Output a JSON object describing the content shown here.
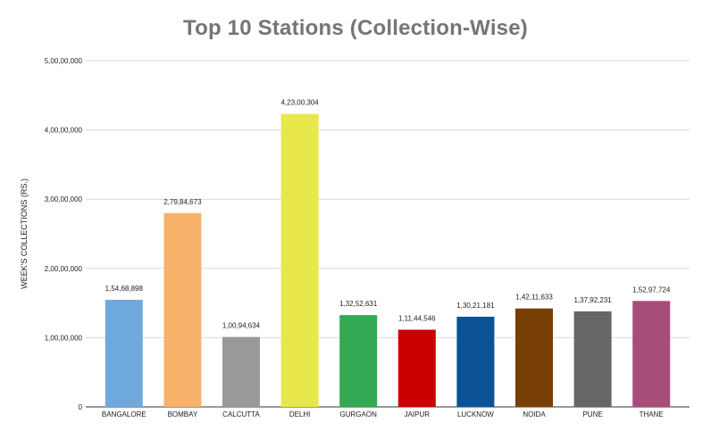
{
  "chart_data": {
    "type": "bar",
    "title": "Top 10 Stations (Collection-Wise)",
    "xlabel": "",
    "ylabel": "WEEK'S COLLECTIONS (RS.)",
    "ylim": [
      0,
      50000000
    ],
    "yticks": [
      0,
      10000000,
      20000000,
      30000000,
      40000000,
      50000000
    ],
    "ytick_labels": [
      "0",
      "1,00,00,000",
      "2,00,00,000",
      "3,00,00,000",
      "4,00,00,000",
      "5,00,00,000"
    ],
    "grid": true,
    "categories": [
      "BANGALORE",
      "BOMBAY",
      "CALCUTTA",
      "DELHI",
      "GURGAON",
      "JAIPUR",
      "LUCKNOW",
      "NOIDA",
      "PUNE",
      "THANE"
    ],
    "values": [
      15468898,
      27984673,
      10094634,
      42300304,
      13252631,
      11144546,
      13021181,
      14211633,
      13792231,
      15297724
    ],
    "data_labels": [
      "1,54,68,898",
      "2,79,84,673",
      "1,00,94,634",
      "4,23,00,304",
      "1,32,52,631",
      "1,11,44,546",
      "1,30,21,181",
      "1,42,11,633",
      "1,37,92,231",
      "1,52,97,724"
    ],
    "colors": [
      "#6fa8dc",
      "#f6b26b",
      "#999999",
      "#e8e84a",
      "#34a853",
      "#cc0000",
      "#0b5394",
      "#783f04",
      "#666666",
      "#a64d79"
    ]
  }
}
